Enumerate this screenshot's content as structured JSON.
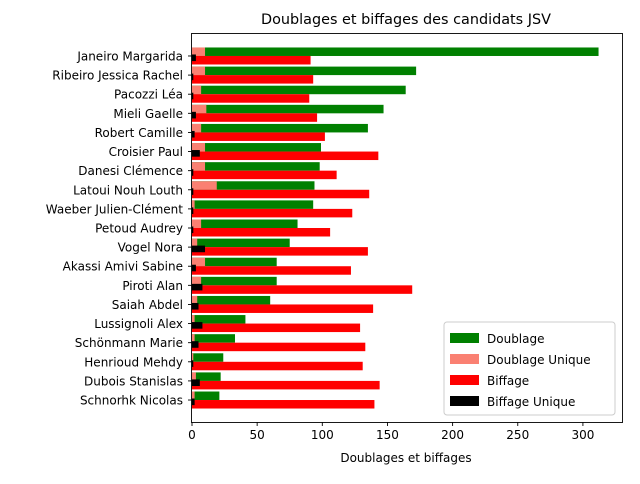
{
  "chart_data": {
    "type": "bar",
    "orientation": "horizontal",
    "title": "Doublages et biffages des candidats JSV",
    "xlabel": "Doublages et biffages",
    "ylabel": "",
    "xlim": [
      0,
      330
    ],
    "xticks": [
      0,
      50,
      100,
      150,
      200,
      250,
      300
    ],
    "grid": false,
    "legend_position": "lower-right",
    "categories": [
      "Janeiro Margarida",
      "Ribeiro Jessica Rachel",
      "Pacozzi Léa",
      "Mieli Gaelle",
      "Robert Camille",
      "Croisier Paul",
      "Danesi Clémence",
      "Latoui Nouh Louth",
      "Waeber Julien-Clément",
      "Petoud Audrey",
      "Vogel Nora",
      "Akassi Amivi Sabine",
      "Piroti Alan",
      "Saiah Abdel",
      "Lussignoli Alex",
      "Schönmann Marie",
      "Henrioud Mehdy",
      "Dubois Stanislas",
      "Schnorhk Nicolas"
    ],
    "series": [
      {
        "name": "Doublage",
        "color": "#008000",
        "values": [
          312,
          172,
          164,
          147,
          135,
          99,
          98,
          94,
          93,
          81,
          75,
          65,
          65,
          60,
          41,
          33,
          24,
          22,
          21
        ]
      },
      {
        "name": "Doublage Unique",
        "color": "#fa8072",
        "values": [
          10,
          10,
          7,
          11,
          7,
          10,
          10,
          19,
          2,
          7,
          4,
          10,
          7,
          4,
          2,
          2,
          1,
          3,
          2
        ]
      },
      {
        "name": "Biffage",
        "color": "#ff0000",
        "values": [
          91,
          93,
          90,
          96,
          102,
          143,
          111,
          136,
          123,
          106,
          135,
          122,
          169,
          139,
          129,
          133,
          131,
          144,
          140
        ]
      },
      {
        "name": "Biffage Unique",
        "color": "#000000",
        "values": [
          3,
          1,
          1,
          3,
          2,
          6,
          1,
          1,
          1,
          1,
          10,
          3,
          8,
          5,
          8,
          5,
          1,
          6,
          2
        ]
      }
    ]
  }
}
